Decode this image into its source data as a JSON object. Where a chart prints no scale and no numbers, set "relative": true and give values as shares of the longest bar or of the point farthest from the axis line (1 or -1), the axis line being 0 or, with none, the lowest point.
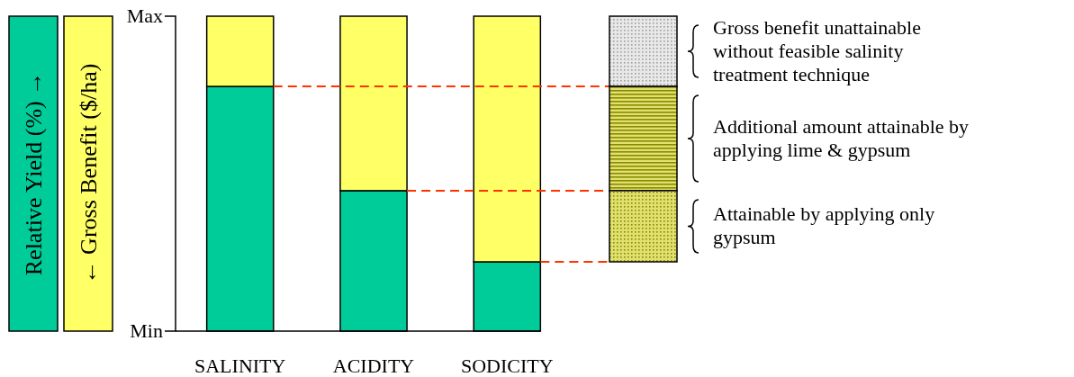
{
  "chart_data": {
    "type": "bar",
    "stacked": true,
    "relative": true,
    "categories": [
      "SALINITY",
      "ACIDITY",
      "SODICITY"
    ],
    "series": [
      {
        "color": "#00cc99",
        "values": [
          0.777,
          0.446,
          0.22
        ]
      },
      {
        "color": "#ffff66",
        "values": [
          0.223,
          0.554,
          0.78
        ]
      }
    ],
    "ref_lines": [
      {
        "axis": "y",
        "value": 0.777,
        "color": "#ff3300",
        "line_style": "dashed"
      },
      {
        "axis": "y",
        "value": 0.446,
        "color": "#ff3300",
        "line_style": "dashed"
      },
      {
        "axis": "y",
        "value": 0.22,
        "color": "#ff3300",
        "line_style": "dashed"
      }
    ],
    "annotations": [
      "Max",
      "Min",
      "Gross benefit unattainable without feasible salinity treatment technique",
      "Additional amount attainable by applying lime &  gypsum",
      "Attainable by applying only gypsum",
      "Relative Yield (%) →",
      "← Gross Benefit ($/ha)"
    ]
  }
}
